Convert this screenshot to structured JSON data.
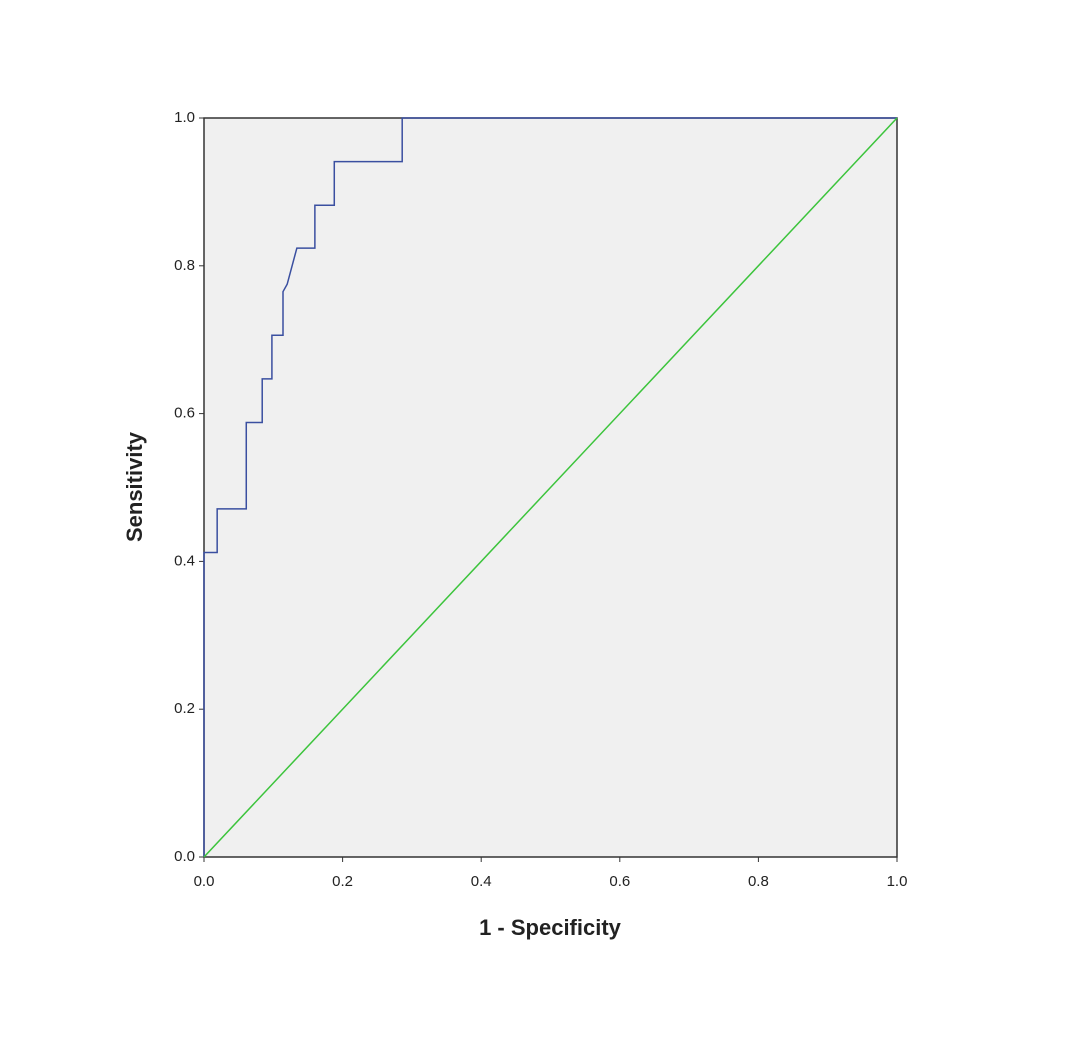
{
  "chart_data": {
    "type": "line",
    "x_label": "1 - Specificity",
    "y_label": "Sensitivity",
    "xlim": [
      0,
      1
    ],
    "ylim": [
      0,
      1
    ],
    "xticks": [
      {
        "value": 0,
        "label": "0.0"
      },
      {
        "value": 0.2,
        "label": "0.2"
      },
      {
        "value": 0.4,
        "label": "0.4"
      },
      {
        "value": 0.6,
        "label": "0.6"
      },
      {
        "value": 0.8,
        "label": "0.8"
      },
      {
        "value": 1,
        "label": "1.0"
      }
    ],
    "yticks": [
      {
        "value": 0,
        "label": "0.0"
      },
      {
        "value": 0.2,
        "label": "0.2"
      },
      {
        "value": 0.4,
        "label": "0.4"
      },
      {
        "value": 0.6,
        "label": "0.6"
      },
      {
        "value": 0.8,
        "label": "0.8"
      },
      {
        "value": 1,
        "label": "1.0"
      }
    ],
    "series": [
      {
        "color": "#3a4fa0",
        "x": [
          0,
          0,
          0.019,
          0.019,
          0.061,
          0.061,
          0.084,
          0.084,
          0.098,
          0.098,
          0.114,
          0.114,
          0.12,
          0.134,
          0.16,
          0.16,
          0.188,
          0.188,
          0.286,
          0.286,
          1
        ],
        "values": [
          0,
          0.412,
          0.412,
          0.471,
          0.471,
          0.588,
          0.588,
          0.647,
          0.647,
          0.706,
          0.706,
          0.765,
          0.775,
          0.824,
          0.824,
          0.882,
          0.882,
          0.941,
          0.941,
          1,
          1
        ]
      },
      {
        "color": "#3cc43c",
        "x": [
          0,
          1
        ],
        "values": [
          0,
          1
        ]
      }
    ]
  }
}
